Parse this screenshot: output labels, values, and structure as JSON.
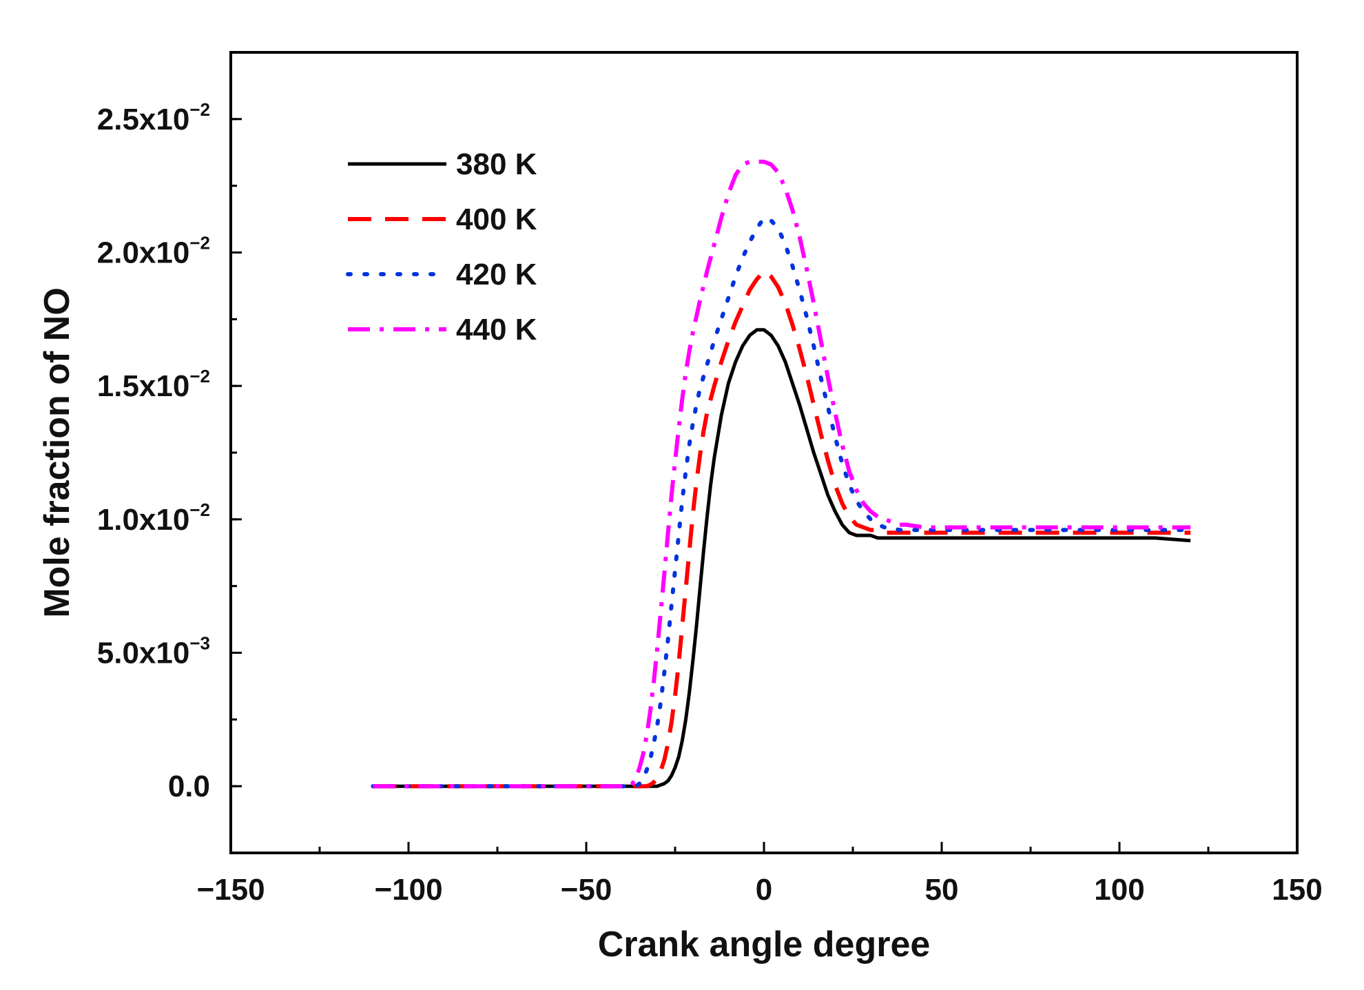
{
  "chart_data": {
    "type": "line",
    "title": "",
    "xlabel": "Crank angle degree",
    "ylabel": "Mole fraction of NO",
    "xlim": [
      -150,
      150
    ],
    "ylim": [
      -0.0025,
      0.0275
    ],
    "xticks": [
      -150,
      -100,
      -50,
      0,
      50,
      100,
      150
    ],
    "xtick_labels": [
      "−150",
      "−100",
      "−50",
      "0",
      "50",
      "100",
      "150"
    ],
    "yticks": [
      {
        "value": 0.0,
        "mantissa": "0.0",
        "exponent": ""
      },
      {
        "value": 0.005,
        "mantissa": "5.0x10",
        "exponent": "−3"
      },
      {
        "value": 0.01,
        "mantissa": "1.0x10",
        "exponent": "−2"
      },
      {
        "value": 0.015,
        "mantissa": "1.5x10",
        "exponent": "−2"
      },
      {
        "value": 0.02,
        "mantissa": "2.0x10",
        "exponent": "−2"
      },
      {
        "value": 0.025,
        "mantissa": "2.5x10",
        "exponent": "−2"
      }
    ],
    "legend_position": "top-left",
    "series": [
      {
        "name": "380 K",
        "color": "#000000",
        "style": "solid",
        "x": [
          -110,
          -40,
          -30,
          -29,
          -28,
          -27,
          -26,
          -25,
          -24,
          -23,
          -22,
          -21,
          -20,
          -19,
          -18,
          -17,
          -16,
          -15,
          -14,
          -12,
          -10,
          -8,
          -6,
          -4,
          -2,
          0,
          2,
          4,
          6,
          8,
          10,
          12,
          14,
          16,
          18,
          20,
          22,
          24,
          26,
          28,
          30,
          32,
          34,
          36,
          40,
          45,
          50,
          60,
          70,
          80,
          90,
          100,
          110,
          120
        ],
        "y": [
          0,
          0,
          0,
          5e-05,
          0.0001,
          0.0002,
          0.0004,
          0.0007,
          0.0011,
          0.0017,
          0.0025,
          0.0035,
          0.0047,
          0.006,
          0.0074,
          0.0088,
          0.0101,
          0.0113,
          0.0123,
          0.0139,
          0.0151,
          0.0159,
          0.0165,
          0.0169,
          0.0171,
          0.0171,
          0.0169,
          0.0165,
          0.0159,
          0.0151,
          0.0143,
          0.0134,
          0.0125,
          0.0117,
          0.0109,
          0.0103,
          0.0098,
          0.0095,
          0.0094,
          0.0094,
          0.0094,
          0.0093,
          0.0093,
          0.0093,
          0.0093,
          0.0093,
          0.0093,
          0.0093,
          0.0093,
          0.0093,
          0.0093,
          0.0093,
          0.0093,
          0.0092
        ]
      },
      {
        "name": "400 K",
        "color": "#ff0000",
        "style": "dashed",
        "x": [
          -110,
          -40,
          -33,
          -32,
          -31,
          -30,
          -29,
          -28,
          -27,
          -26,
          -25,
          -24,
          -23,
          -22,
          -21,
          -20,
          -19,
          -18,
          -17,
          -16,
          -14,
          -12,
          -10,
          -8,
          -6,
          -4,
          -2,
          0,
          2,
          4,
          6,
          8,
          10,
          12,
          14,
          16,
          18,
          20,
          22,
          24,
          26,
          28,
          30,
          32,
          34,
          36,
          38,
          40,
          45,
          50,
          60,
          70,
          80,
          90,
          100,
          110,
          120
        ],
        "y": [
          0,
          0,
          0,
          5e-05,
          0.00015,
          0.0003,
          0.0006,
          0.001,
          0.0016,
          0.0024,
          0.0034,
          0.0046,
          0.006,
          0.0074,
          0.0088,
          0.0102,
          0.0114,
          0.0124,
          0.0133,
          0.014,
          0.015,
          0.0159,
          0.0167,
          0.0174,
          0.018,
          0.0186,
          0.019,
          0.0193,
          0.0191,
          0.0187,
          0.0181,
          0.0173,
          0.0164,
          0.0154,
          0.0143,
          0.0132,
          0.0122,
          0.0113,
          0.0106,
          0.0101,
          0.0098,
          0.0097,
          0.0096,
          0.0096,
          0.0095,
          0.0095,
          0.0095,
          0.0095,
          0.0095,
          0.0095,
          0.0095,
          0.0095,
          0.0095,
          0.0095,
          0.0095,
          0.0095,
          0.0095
        ]
      },
      {
        "name": "420 K",
        "color": "#0033dd",
        "style": "dotted",
        "x": [
          -110,
          -40,
          -36,
          -35,
          -34,
          -33,
          -32,
          -31,
          -30,
          -29,
          -28,
          -27,
          -26,
          -25,
          -24,
          -23,
          -22,
          -21,
          -20,
          -19,
          -18,
          -16,
          -14,
          -12,
          -10,
          -8,
          -6,
          -4,
          -2,
          0,
          2,
          4,
          6,
          8,
          10,
          12,
          14,
          16,
          18,
          20,
          22,
          24,
          26,
          28,
          30,
          32,
          34,
          36,
          38,
          40,
          45,
          50,
          60,
          70,
          80,
          90,
          100,
          110,
          120
        ],
        "y": [
          0,
          0,
          0,
          0.0001,
          0.0003,
          0.0006,
          0.001,
          0.0016,
          0.0023,
          0.0032,
          0.0043,
          0.0055,
          0.0068,
          0.0081,
          0.0094,
          0.0107,
          0.0118,
          0.0128,
          0.0136,
          0.0143,
          0.0149,
          0.0158,
          0.0167,
          0.0175,
          0.0183,
          0.0191,
          0.0198,
          0.0204,
          0.0209,
          0.0213,
          0.0212,
          0.0209,
          0.0203,
          0.0195,
          0.0186,
          0.0176,
          0.0165,
          0.0153,
          0.0142,
          0.0131,
          0.0121,
          0.0113,
          0.0107,
          0.0103,
          0.01,
          0.0098,
          0.0097,
          0.0097,
          0.0096,
          0.0096,
          0.0096,
          0.0096,
          0.0096,
          0.0096,
          0.0096,
          0.0096,
          0.0096,
          0.0096,
          0.0096
        ]
      },
      {
        "name": "440 K",
        "color": "#ff00ff",
        "style": "dashdot",
        "x": [
          -110,
          -42,
          -38,
          -37,
          -36,
          -35,
          -34,
          -33,
          -32,
          -31,
          -30,
          -29,
          -28,
          -27,
          -26,
          -25,
          -24,
          -23,
          -22,
          -21,
          -20,
          -18,
          -16,
          -14,
          -12,
          -10,
          -8,
          -6,
          -4,
          -2,
          0,
          2,
          4,
          6,
          8,
          10,
          12,
          14,
          16,
          18,
          20,
          22,
          24,
          26,
          28,
          30,
          32,
          34,
          36,
          38,
          40,
          45,
          50,
          60,
          70,
          80,
          90,
          100,
          110,
          120
        ],
        "y": [
          0,
          0,
          0,
          0.0001,
          0.0003,
          0.0007,
          0.0012,
          0.0019,
          0.0028,
          0.0039,
          0.0052,
          0.0066,
          0.008,
          0.0095,
          0.0109,
          0.0122,
          0.0134,
          0.0145,
          0.0155,
          0.0163,
          0.017,
          0.0182,
          0.0193,
          0.0203,
          0.0213,
          0.0222,
          0.0229,
          0.0233,
          0.0234,
          0.0234,
          0.0234,
          0.0233,
          0.023,
          0.0224,
          0.0216,
          0.0206,
          0.0194,
          0.0181,
          0.0167,
          0.0153,
          0.014,
          0.0128,
          0.0118,
          0.0111,
          0.0106,
          0.0103,
          0.0101,
          0.01,
          0.0099,
          0.0098,
          0.0098,
          0.0097,
          0.0097,
          0.0097,
          0.0097,
          0.0097,
          0.0097,
          0.0097,
          0.0097,
          0.0097
        ]
      }
    ]
  }
}
